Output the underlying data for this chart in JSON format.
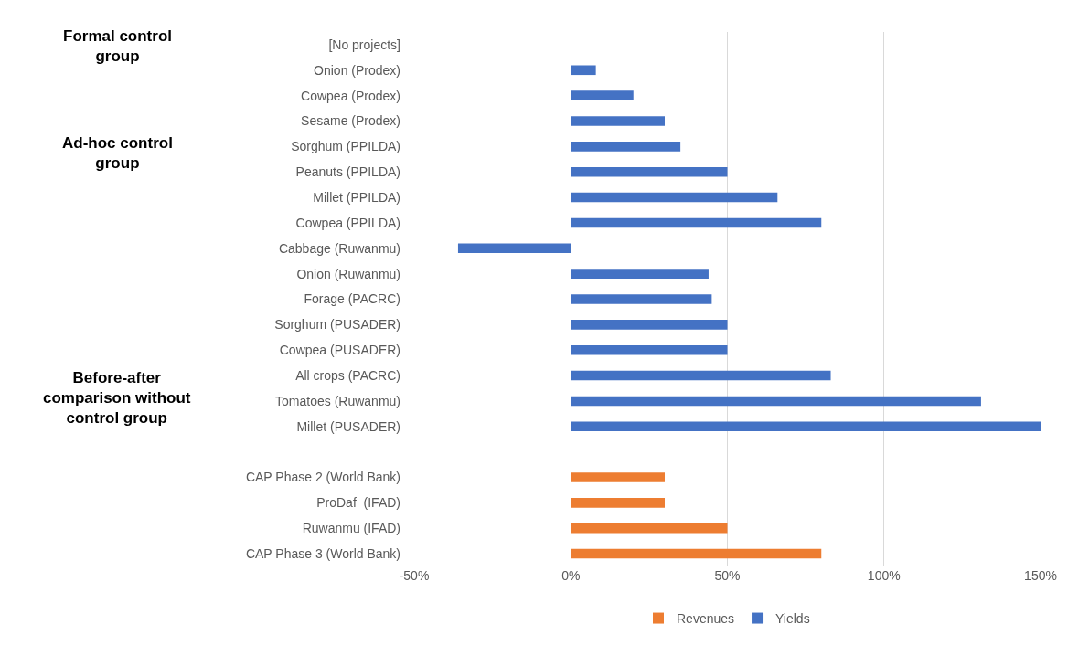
{
  "chart_data": {
    "type": "bar",
    "orientation": "horizontal",
    "categories": [
      "[No projects]",
      "Onion (Prodex)",
      "Cowpea (Prodex)",
      "Sesame (Prodex)",
      "Sorghum (PPILDA)",
      "Peanuts (PPILDA)",
      "Millet (PPILDA)",
      "Cowpea (PPILDA)",
      "Cabbage (Ruwanmu)",
      "Onion (Ruwanmu)",
      "Forage (PACRC)",
      "Sorghum (PUSADER)",
      "Cowpea (PUSADER)",
      "All crops (PACRC)",
      "Tomatoes (Ruwanmu)",
      "Millet (PUSADER)",
      null,
      "CAP Phase 2 (World Bank)",
      "ProDaf  (IFAD)",
      "Ruwanmu (IFAD)",
      "CAP Phase 3 (World Bank)"
    ],
    "series": [
      {
        "name": "Revenues",
        "color": "#ed7d31",
        "values": [
          null,
          null,
          null,
          null,
          null,
          null,
          null,
          null,
          null,
          null,
          null,
          null,
          null,
          null,
          null,
          null,
          null,
          30,
          30,
          50,
          80
        ]
      },
      {
        "name": "Yields",
        "color": "#4472c4",
        "values": [
          null,
          8,
          20,
          30,
          35,
          50,
          66,
          80,
          -36,
          44,
          45,
          50,
          50,
          83,
          131,
          150,
          null,
          null,
          null,
          null,
          null
        ]
      }
    ],
    "xlim": [
      -50,
      150
    ],
    "xticks": [
      {
        "value": -50,
        "label": "-50%"
      },
      {
        "value": 0,
        "label": "0%"
      },
      {
        "value": 50,
        "label": "50%"
      },
      {
        "value": 100,
        "label": "100%"
      },
      {
        "value": 150,
        "label": "150%"
      }
    ],
    "grid": "x",
    "legend": "bottom",
    "annotations": [
      "Formal control group",
      "Ad-hoc control group",
      "Before-after comparison without control group"
    ]
  }
}
